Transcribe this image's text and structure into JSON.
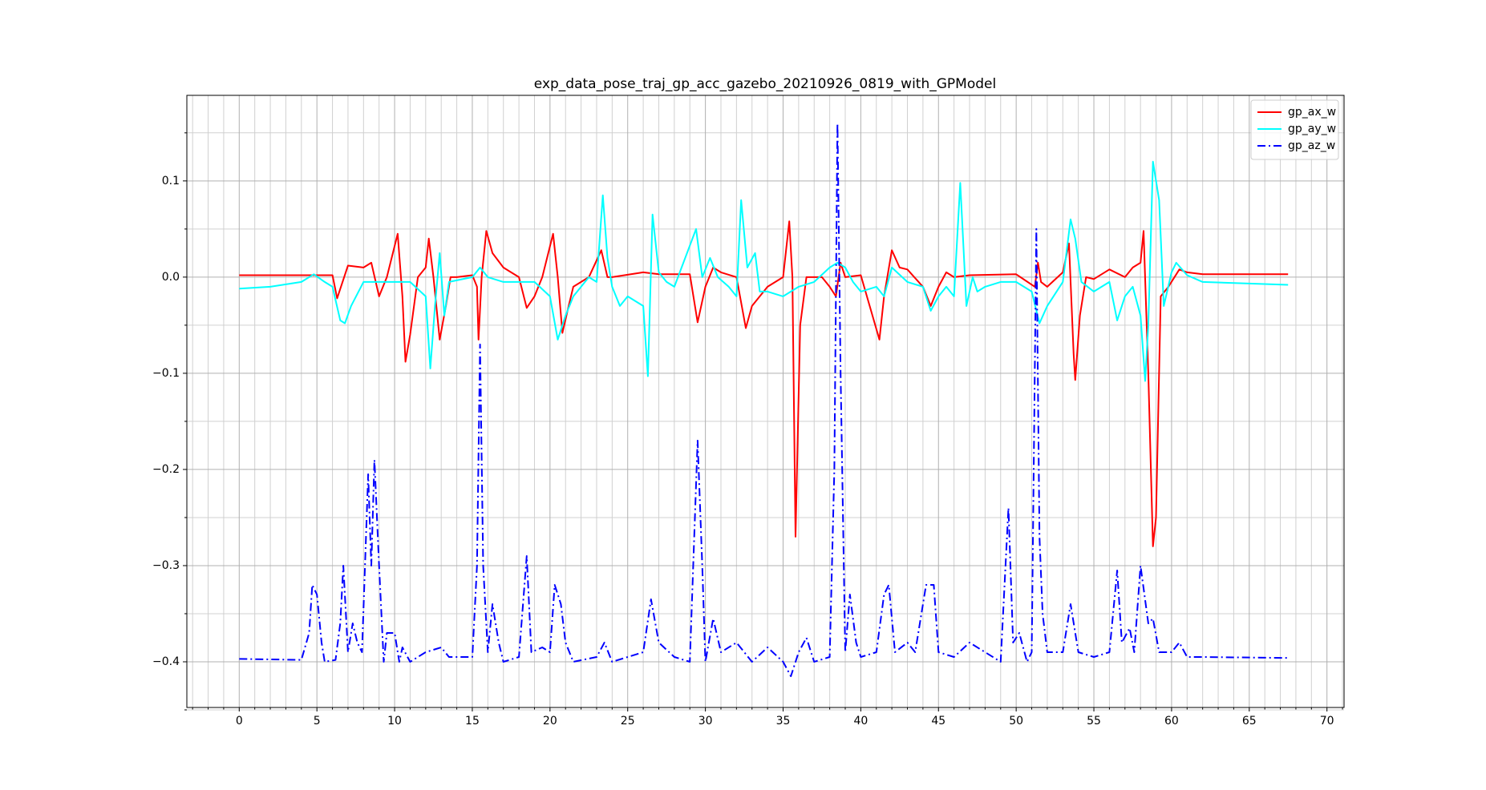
{
  "chart_data": {
    "type": "line",
    "title": "exp_data_pose_traj_gp_acc_gazebo_20210926_0819_with_GPModel",
    "xlim": [
      -3.37,
      71.1
    ],
    "ylim": [
      -0.4475,
      0.189
    ],
    "xticks": [
      0,
      5,
      10,
      15,
      20,
      25,
      30,
      35,
      40,
      45,
      50,
      55,
      60,
      65,
      70
    ],
    "yticks": [
      {
        "value": -0.4,
        "label": "−0.4"
      },
      {
        "value": -0.3,
        "label": "−0.3"
      },
      {
        "value": -0.2,
        "label": "−0.2"
      },
      {
        "value": -0.1,
        "label": "−0.1"
      },
      {
        "value": 0.0,
        "label": "0.0"
      },
      {
        "value": 0.1,
        "label": "0.1"
      }
    ],
    "xminorticks": [
      -3,
      -2,
      -1,
      1,
      2,
      3,
      4,
      6,
      7,
      8,
      9,
      11,
      12,
      13,
      14,
      16,
      17,
      18,
      19,
      21,
      22,
      23,
      24,
      26,
      27,
      28,
      29,
      31,
      32,
      33,
      34,
      36,
      37,
      38,
      39,
      41,
      42,
      43,
      44,
      46,
      47,
      48,
      49,
      51,
      52,
      53,
      54,
      56,
      57,
      58,
      59,
      61,
      62,
      63,
      64,
      66,
      67,
      68,
      69,
      71
    ],
    "yminorticks": [
      -0.45,
      -0.35,
      -0.25,
      -0.15,
      -0.05,
      0.05,
      0.15
    ],
    "grid": true,
    "minor_grid": true,
    "legend": "upper right",
    "series": [
      {
        "name": "gp_ax_w",
        "color": "#ff0000",
        "style": "solid",
        "x": [
          0,
          6,
          6.3,
          7,
          8,
          8.5,
          9,
          9.5,
          10.2,
          10.5,
          10.7,
          11,
          11.5,
          12,
          12.2,
          12.5,
          12.9,
          13.3,
          13.6,
          14,
          15,
          15.3,
          15.4,
          15.6,
          15.9,
          16.3,
          17,
          18,
          18.5,
          19,
          19.5,
          20.2,
          20.5,
          20.8,
          21.2,
          21.5,
          22.5,
          23.3,
          23.7,
          24,
          26,
          27,
          29,
          29.5,
          30,
          30.5,
          31,
          32,
          32.6,
          33,
          34,
          35,
          35.4,
          35.6,
          35.8,
          36.1,
          36.5,
          37.5,
          38,
          38.4,
          38.7,
          39,
          40,
          41.2,
          41.5,
          42,
          42.5,
          43,
          44,
          44.5,
          45,
          45.5,
          46,
          47,
          50,
          51.2,
          51.4,
          51.6,
          52,
          53,
          53.4,
          53.7,
          53.8,
          54.1,
          54.5,
          55,
          56,
          57,
          57.5,
          58,
          58.2,
          58.5,
          58.8,
          59,
          59.3,
          59.8,
          60.5,
          61,
          62,
          67.5
        ],
        "values": [
          0.002,
          0.002,
          -0.022,
          0.012,
          0.01,
          0.015,
          -0.02,
          0,
          0.045,
          -0.02,
          -0.088,
          -0.06,
          0,
          0.01,
          0.04,
          0,
          -0.065,
          -0.03,
          0,
          0,
          0.002,
          -0.01,
          -0.065,
          0,
          0.048,
          0.025,
          0.01,
          0,
          -0.032,
          -0.02,
          0,
          0.045,
          0,
          -0.058,
          -0.03,
          -0.01,
          0,
          0.028,
          0,
          0,
          0.005,
          0.003,
          0.003,
          -0.047,
          -0.01,
          0.01,
          0.005,
          0,
          -0.053,
          -0.03,
          -0.01,
          0,
          0.058,
          0,
          -0.27,
          -0.05,
          0,
          0,
          -0.01,
          -0.02,
          0.015,
          0,
          0.002,
          -0.065,
          -0.02,
          0.028,
          0.01,
          0.008,
          -0.01,
          -0.03,
          -0.01,
          0.005,
          0,
          0.002,
          0.003,
          -0.01,
          0.015,
          -0.005,
          -0.01,
          0.005,
          0.035,
          -0.08,
          -0.107,
          -0.04,
          0,
          -0.002,
          0.008,
          0,
          0.01,
          0.015,
          0.048,
          -0.1,
          -0.28,
          -0.25,
          -0.02,
          -0.01,
          0.008,
          0.005,
          0.003,
          0.003
        ]
      },
      {
        "name": "gp_ay_w",
        "color": "#00ffff",
        "style": "solid",
        "x": [
          0,
          2,
          4,
          4.8,
          5.5,
          6,
          6.5,
          6.8,
          7.2,
          8,
          9,
          10,
          11,
          12,
          12.3,
          12.6,
          12.9,
          13.2,
          13.5,
          15,
          15.5,
          16,
          17,
          18,
          19,
          20,
          20.5,
          21,
          21.5,
          22.5,
          23,
          23.4,
          23.7,
          24,
          24.5,
          25,
          26,
          26.3,
          26.6,
          27,
          27.5,
          28,
          29.4,
          29.8,
          30.3,
          30.8,
          31.5,
          32,
          32.3,
          32.7,
          33.2,
          33.5,
          34,
          35,
          36,
          37,
          38,
          38.5,
          39,
          39.5,
          40,
          41,
          41.5,
          42,
          43,
          44,
          44.5,
          45,
          45.5,
          46,
          46.4,
          46.8,
          47.2,
          47.5,
          48,
          49,
          50,
          51,
          51.5,
          52,
          53,
          53.5,
          53.8,
          54.2,
          55,
          56,
          56.5,
          57,
          57.5,
          58,
          58.3,
          58.5,
          58.8,
          59.2,
          59.5,
          60,
          60.3,
          61,
          62,
          67.5
        ],
        "values": [
          -0.012,
          -0.01,
          -0.005,
          0.003,
          -0.005,
          -0.01,
          -0.045,
          -0.048,
          -0.03,
          -0.005,
          -0.005,
          -0.005,
          -0.005,
          -0.02,
          -0.095,
          -0.03,
          0.025,
          -0.04,
          -0.005,
          0,
          0.01,
          0,
          -0.005,
          -0.005,
          -0.005,
          -0.02,
          -0.065,
          -0.04,
          -0.02,
          0,
          -0.005,
          0.085,
          0.02,
          -0.01,
          -0.03,
          -0.02,
          -0.03,
          -0.103,
          0.065,
          0.005,
          -0.005,
          -0.01,
          0.05,
          0,
          0.02,
          0,
          -0.01,
          -0.02,
          0.08,
          0.01,
          0.025,
          -0.015,
          -0.015,
          -0.02,
          -0.01,
          -0.005,
          0.01,
          0.015,
          0.01,
          -0.005,
          -0.015,
          -0.01,
          -0.02,
          0.01,
          -0.005,
          -0.01,
          -0.035,
          -0.02,
          -0.01,
          -0.02,
          0.098,
          -0.03,
          0,
          -0.015,
          -0.01,
          -0.005,
          -0.005,
          -0.015,
          -0.048,
          -0.03,
          -0.005,
          0.06,
          0.04,
          -0.005,
          -0.015,
          -0.005,
          -0.045,
          -0.02,
          -0.01,
          -0.04,
          -0.108,
          -0.05,
          0.12,
          0.08,
          -0.03,
          0.005,
          0.015,
          0.002,
          -0.005,
          -0.008
        ]
      },
      {
        "name": "gp_az_w",
        "color": "#0000ff",
        "style": "dashdot",
        "x": [
          0,
          4,
          4.5,
          4.7,
          5,
          5.3,
          5.5,
          6.2,
          6.5,
          6.7,
          7,
          7.3,
          7.6,
          7.9,
          8.3,
          8.5,
          8.7,
          9,
          9.3,
          9.5,
          10,
          10.3,
          10.5,
          11,
          12,
          13,
          13.5,
          15,
          15.3,
          15.5,
          15.7,
          16,
          16.3,
          16.7,
          17,
          18,
          18.5,
          18.8,
          19.5,
          20,
          20.3,
          20.7,
          21,
          21.5,
          23,
          23.5,
          24,
          26,
          26.5,
          27,
          28,
          29,
          29.5,
          29.8,
          30,
          30.5,
          31,
          32,
          33,
          34,
          35,
          35.5,
          36,
          36.5,
          37,
          38,
          38.3,
          38.5,
          38.7,
          39,
          39.3,
          39.7,
          40,
          41,
          41.5,
          41.8,
          42.2,
          43,
          43.5,
          44.2,
          44.7,
          45,
          46,
          47,
          48,
          49,
          49.5,
          49.8,
          50.2,
          50.7,
          51,
          51.3,
          51.5,
          51.7,
          52,
          53,
          53.5,
          54,
          55,
          56,
          56.5,
          56.8,
          57.3,
          57.6,
          58,
          58.5,
          58.8,
          59.2,
          60,
          60.5,
          61,
          62,
          67.5
        ],
        "values": [
          -0.397,
          -0.398,
          -0.37,
          -0.32,
          -0.33,
          -0.38,
          -0.4,
          -0.398,
          -0.36,
          -0.3,
          -0.39,
          -0.36,
          -0.38,
          -0.39,
          -0.205,
          -0.3,
          -0.19,
          -0.3,
          -0.4,
          -0.37,
          -0.37,
          -0.4,
          -0.385,
          -0.4,
          -0.39,
          -0.385,
          -0.395,
          -0.395,
          -0.3,
          -0.07,
          -0.3,
          -0.39,
          -0.34,
          -0.38,
          -0.4,
          -0.395,
          -0.29,
          -0.39,
          -0.385,
          -0.39,
          -0.32,
          -0.34,
          -0.38,
          -0.4,
          -0.395,
          -0.38,
          -0.4,
          -0.39,
          -0.335,
          -0.38,
          -0.395,
          -0.4,
          -0.17,
          -0.3,
          -0.4,
          -0.355,
          -0.39,
          -0.38,
          -0.4,
          -0.385,
          -0.4,
          -0.415,
          -0.39,
          -0.375,
          -0.4,
          -0.395,
          -0.2,
          0.16,
          -0.1,
          -0.39,
          -0.33,
          -0.38,
          -0.395,
          -0.39,
          -0.33,
          -0.32,
          -0.39,
          -0.38,
          -0.39,
          -0.32,
          -0.32,
          -0.39,
          -0.395,
          -0.38,
          -0.39,
          -0.4,
          -0.24,
          -0.38,
          -0.37,
          -0.4,
          -0.39,
          0.05,
          -0.27,
          -0.35,
          -0.39,
          -0.39,
          -0.34,
          -0.39,
          -0.395,
          -0.39,
          -0.305,
          -0.38,
          -0.365,
          -0.39,
          -0.3,
          -0.36,
          -0.355,
          -0.39,
          -0.39,
          -0.38,
          -0.395,
          -0.395,
          -0.396
        ]
      }
    ]
  }
}
